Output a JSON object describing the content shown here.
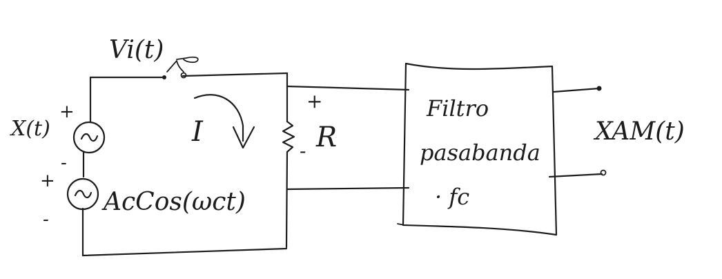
{
  "labels": {
    "vi": "Vi(t)",
    "source_x": "X(t)",
    "current": "I",
    "resistor": "R",
    "carrier": "AcCos(ωct)",
    "filter_line1": "Filtro",
    "filter_line2": "pasabanda",
    "filter_fc": "· fc",
    "output": "XAM(t)",
    "plus_src1": "+",
    "minus_src1": "-",
    "plus_src2": "+",
    "minus_src2": "-",
    "plus_r": "+",
    "minus_r": "-"
  },
  "colors": {
    "ink": "#1c1c1c",
    "background": "#ffffff"
  },
  "icons": {
    "switch": "switch-icon",
    "ac_source_1": "ac-source-icon",
    "ac_source_2": "ac-source-icon",
    "resistor": "resistor-zigzag-icon",
    "current_arrow": "curved-arrow-icon"
  }
}
